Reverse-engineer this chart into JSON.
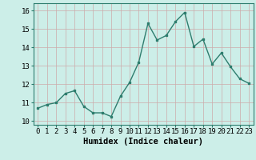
{
  "x": [
    0,
    1,
    2,
    3,
    4,
    5,
    6,
    7,
    8,
    9,
    10,
    11,
    12,
    13,
    14,
    15,
    16,
    17,
    18,
    19,
    20,
    21,
    22,
    23
  ],
  "y": [
    10.7,
    10.9,
    11.0,
    11.5,
    11.65,
    10.8,
    10.45,
    10.45,
    10.25,
    11.35,
    12.1,
    13.2,
    15.3,
    14.4,
    14.65,
    15.4,
    15.9,
    14.05,
    14.45,
    13.1,
    13.7,
    12.95,
    12.3,
    12.05
  ],
  "line_color": "#2e7d6e",
  "marker": "s",
  "marker_size": 2.0,
  "bg_color": "#cceee8",
  "grid_color": "#ccaaaa",
  "xlabel": "Humidex (Indice chaleur)",
  "xlabel_fontsize": 7.5,
  "ylabel_ticks": [
    10,
    11,
    12,
    13,
    14,
    15,
    16
  ],
  "xlim": [
    -0.5,
    23.5
  ],
  "ylim": [
    9.8,
    16.4
  ],
  "xtick_labels": [
    "0",
    "1",
    "2",
    "3",
    "4",
    "5",
    "6",
    "7",
    "8",
    "9",
    "10",
    "11",
    "12",
    "13",
    "14",
    "15",
    "16",
    "17",
    "18",
    "19",
    "20",
    "21",
    "22",
    "23"
  ],
  "tick_fontsize": 6.5,
  "line_width": 1.0
}
